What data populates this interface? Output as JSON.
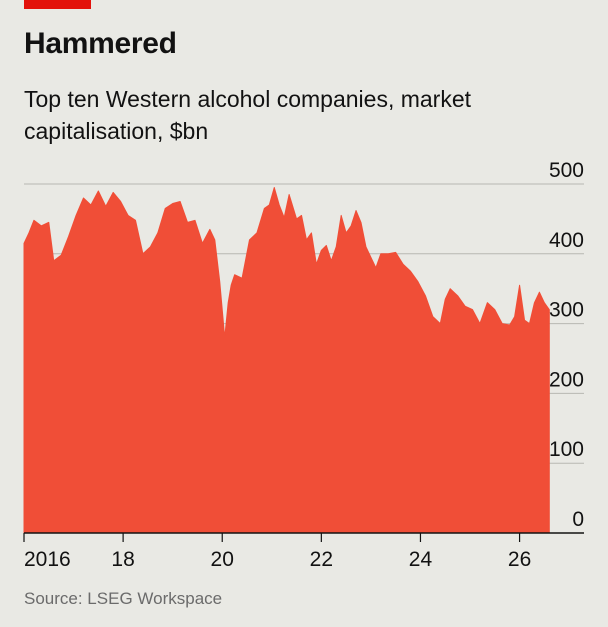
{
  "header": {
    "title": "Hammered",
    "subtitle": "Top ten Western alcohol companies, market capitalisation, $bn"
  },
  "colors": {
    "area": "#f04e37",
    "accent": "#e3120b",
    "grid": "#b7b7b2",
    "axis": "#121212",
    "background": "#e9e9e4"
  },
  "source": "Source: LSEG Workspace",
  "chart_data": {
    "type": "area",
    "title": "Hammered",
    "subtitle": "Top ten Western alcohol companies, market capitalisation, $bn",
    "ylabel": "",
    "xlabel": "",
    "ylim": [
      0,
      500
    ],
    "xlim": [
      2016.0,
      2027.3
    ],
    "yticks": [
      0,
      100,
      200,
      300,
      400,
      500
    ],
    "yticklabels": [
      "0",
      "100",
      "200",
      "300",
      "400",
      "500"
    ],
    "xticks": [
      2016,
      2018,
      2020,
      2022,
      2024,
      2026
    ],
    "xticklabels": [
      "2016",
      "18",
      "20",
      "22",
      "24",
      "26"
    ],
    "grid": true,
    "series": [
      {
        "x": [
          2016.0,
          2016.1,
          2016.2,
          2016.35,
          2016.5,
          2016.6,
          2016.75,
          2016.9,
          2017.05,
          2017.2,
          2017.35,
          2017.5,
          2017.65,
          2017.8,
          2017.95,
          2018.1,
          2018.25,
          2018.4,
          2018.55,
          2018.7,
          2018.85,
          2019.0,
          2019.15,
          2019.3,
          2019.45,
          2019.6,
          2019.75,
          2019.85,
          2019.95,
          2020.05,
          2020.12,
          2020.18,
          2020.25,
          2020.4,
          2020.55,
          2020.7,
          2020.85,
          2020.95,
          2021.05,
          2021.15,
          2021.25,
          2021.35,
          2021.5,
          2021.6,
          2021.7,
          2021.8,
          2021.9,
          2022.0,
          2022.1,
          2022.2,
          2022.3,
          2022.4,
          2022.5,
          2022.6,
          2022.7,
          2022.8,
          2022.9,
          2023.0,
          2023.1,
          2023.2,
          2023.35,
          2023.5,
          2023.65,
          2023.8,
          2023.95,
          2024.1,
          2024.25,
          2024.4,
          2024.5,
          2024.6,
          2024.75,
          2024.9,
          2025.05,
          2025.2,
          2025.35,
          2025.5,
          2025.65,
          2025.8,
          2025.9,
          2026.0,
          2026.1,
          2026.2,
          2026.3,
          2026.4,
          2026.5,
          2026.6
        ],
        "values": [
          415,
          430,
          448,
          440,
          445,
          390,
          398,
          425,
          455,
          480,
          470,
          490,
          468,
          488,
          475,
          455,
          448,
          400,
          410,
          430,
          465,
          472,
          475,
          445,
          448,
          415,
          435,
          420,
          360,
          280,
          330,
          355,
          370,
          365,
          420,
          430,
          465,
          470,
          495,
          470,
          452,
          485,
          450,
          455,
          420,
          430,
          385,
          405,
          412,
          390,
          410,
          455,
          430,
          440,
          462,
          445,
          410,
          395,
          380,
          400,
          400,
          402,
          385,
          375,
          360,
          340,
          310,
          300,
          335,
          350,
          340,
          325,
          320,
          300,
          330,
          320,
          300,
          298,
          310,
          355,
          305,
          300,
          330,
          345,
          330,
          320
        ]
      }
    ]
  }
}
